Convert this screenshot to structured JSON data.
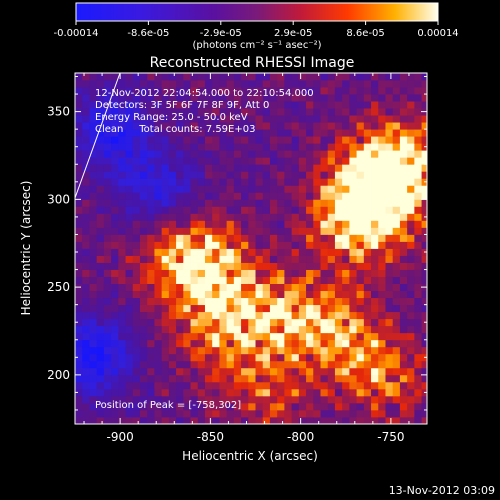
{
  "chart_data": {
    "type": "heatmap",
    "title": "Reconstructed RHESSI Image",
    "xlabel": "Heliocentric X (arcsec)",
    "ylabel": "Heliocentric Y (arcsec)",
    "xlim": [
      -925,
      -730
    ],
    "ylim": [
      172,
      372
    ],
    "xticks": [
      -900,
      -850,
      -800,
      -750
    ],
    "yticks": [
      200,
      250,
      300,
      350
    ],
    "colorbar": {
      "label": "(photons cm⁻² s⁻¹ asec⁻²)",
      "ticks": [
        "-0.00014",
        "-8.6e-05",
        "-2.9e-05",
        "2.9e-05",
        "8.6e-05",
        "0.00014"
      ],
      "min": -0.00014,
      "max": 0.00014
    },
    "annotations": [
      "12-Nov-2012 22:04:54.000 to 22:10:54.000",
      "Detectors: 3F 5F 6F 7F 8F 9F, Att 0",
      "Energy Range: 25.0 - 50.0 keV",
      "Clean     Total counts: 7.59E+03"
    ],
    "peak_label": "Position of Peak = [-758,302]",
    "peak": {
      "x": -758,
      "y": 302
    },
    "hot_regions": [
      {
        "x": -760,
        "y": 305,
        "strength": 1.0
      },
      {
        "x": -745,
        "y": 320,
        "strength": 0.85
      },
      {
        "x": -770,
        "y": 285,
        "strength": 0.7
      },
      {
        "x": -865,
        "y": 268,
        "strength": 0.75
      },
      {
        "x": -845,
        "y": 255,
        "strength": 0.55
      },
      {
        "x": -810,
        "y": 235,
        "strength": 0.6
      },
      {
        "x": -845,
        "y": 225,
        "strength": 0.55
      },
      {
        "x": -780,
        "y": 225,
        "strength": 0.6
      },
      {
        "x": -755,
        "y": 200,
        "strength": 0.55
      },
      {
        "x": -820,
        "y": 190,
        "strength": 0.45
      }
    ],
    "cold_regions": [
      {
        "x": -905,
        "y": 340,
        "strength": 0.7
      },
      {
        "x": -915,
        "y": 210,
        "strength": 0.8
      },
      {
        "x": -880,
        "y": 305,
        "strength": 0.6
      }
    ]
  },
  "footer": {
    "timestamp": "13-Nov-2012 03:09"
  }
}
